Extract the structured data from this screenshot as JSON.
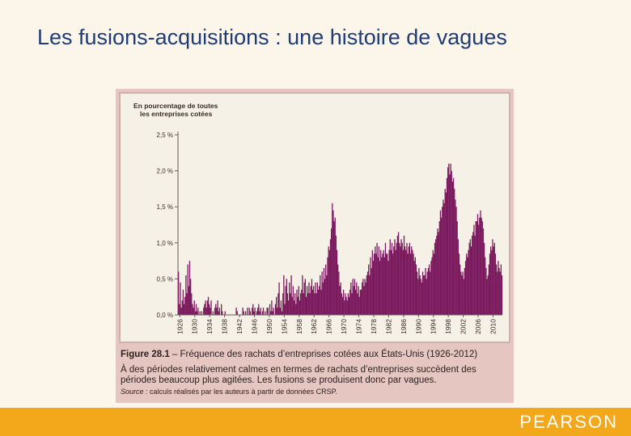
{
  "slide": {
    "title": "Les fusions-acquisitions : une histoire de vagues",
    "footer_logo": "PEARSON"
  },
  "figure": {
    "caption_number": "Figure 28.1",
    "caption_title": " – Fréquence des rachats d’entreprises cotées aux États-Unis (1926-2012)",
    "caption_body": "À des périodes relativement calmes en termes de rachats d’entreprises succèdent des périodes beaucoup plus agitées. Les fusions se produisent donc par vagues.",
    "source_label": "Source :",
    "source_text": " calculs réalisés par les auteurs à partir de données CRSP."
  },
  "colors": {
    "bar": "#7b1a5e",
    "background": "#fcf6ea",
    "figure_frame": "#e5c6c0",
    "title": "#1e3c78",
    "footer": "#f3a81c"
  },
  "chart_data": {
    "type": "bar",
    "ylabel": "En pourcentage de toutes les entreprises cotées",
    "ylim": [
      0,
      2.5
    ],
    "y_ticks": [
      "0,0 %",
      "0,5 %",
      "1,0 %",
      "1,5 %",
      "2,0 %",
      "2,5 %"
    ],
    "x_ticks": [
      "1926",
      "1930",
      "1934",
      "1938",
      "1942",
      "1946",
      "1950",
      "1954",
      "1958",
      "1962",
      "1966",
      "1970",
      "1974",
      "1978",
      "1982",
      "1986",
      "1990",
      "1994",
      "1998",
      "2002",
      "2006",
      "2010"
    ],
    "xlim": [
      1926,
      2013
    ],
    "grid": false,
    "bar_series": [
      {
        "year": 1926,
        "values": [
          0.6,
          0.15,
          0.45,
          0.1
        ]
      },
      {
        "year": 1927,
        "values": [
          0.2,
          0.35,
          0.15,
          0.25
        ]
      },
      {
        "year": 1928,
        "values": [
          0.55,
          0.3,
          0.7,
          0.4
        ]
      },
      {
        "year": 1929,
        "values": [
          0.75,
          0.5,
          0.3,
          0.15
        ]
      },
      {
        "year": 1930,
        "values": [
          0.1,
          0.2,
          0.05,
          0.15
        ]
      },
      {
        "year": 1931,
        "values": [
          0.05,
          0.1,
          0.0,
          0.05
        ]
      },
      {
        "year": 1932,
        "values": [
          0.0,
          0.05,
          0.0,
          0.1
        ]
      },
      {
        "year": 1933,
        "values": [
          0.15,
          0.2,
          0.1,
          0.2
        ]
      },
      {
        "year": 1934,
        "values": [
          0.25,
          0.15,
          0.1,
          0.2
        ]
      },
      {
        "year": 1935,
        "values": [
          0.0,
          0.05,
          0.0,
          0.1
        ]
      },
      {
        "year": 1936,
        "values": [
          0.15,
          0.1,
          0.2,
          0.05
        ]
      },
      {
        "year": 1937,
        "values": [
          0.1,
          0.0,
          0.15,
          0.05
        ]
      },
      {
        "year": 1938,
        "values": [
          0.0,
          0.0,
          0.05,
          0.0
        ]
      },
      {
        "year": 1939,
        "values": [
          0.0,
          0.0,
          0.0,
          0.0
        ]
      },
      {
        "year": 1940,
        "values": [
          0.0,
          0.0,
          0.0,
          0.0
        ]
      },
      {
        "year": 1941,
        "values": [
          0.0,
          0.0,
          0.1,
          0.05
        ]
      },
      {
        "year": 1942,
        "values": [
          0.0,
          0.0,
          0.0,
          0.0
        ]
      },
      {
        "year": 1943,
        "values": [
          0.0,
          0.1,
          0.05,
          0.0
        ]
      },
      {
        "year": 1944,
        "values": [
          0.05,
          0.0,
          0.1,
          0.0
        ]
      },
      {
        "year": 1945,
        "values": [
          0.1,
          0.05,
          0.0,
          0.1
        ]
      },
      {
        "year": 1946,
        "values": [
          0.15,
          0.05,
          0.1,
          0.0
        ]
      },
      {
        "year": 1947,
        "values": [
          0.05,
          0.1,
          0.15,
          0.05
        ]
      },
      {
        "year": 1948,
        "values": [
          0.1,
          0.0,
          0.05,
          0.1
        ]
      },
      {
        "year": 1949,
        "values": [
          0.0,
          0.05,
          0.0,
          0.1
        ]
      },
      {
        "year": 1950,
        "values": [
          0.1,
          0.0,
          0.15,
          0.05
        ]
      },
      {
        "year": 1951,
        "values": [
          0.2,
          0.05,
          0.1,
          0.0
        ]
      },
      {
        "year": 1952,
        "values": [
          0.15,
          0.25,
          0.1,
          0.3
        ]
      },
      {
        "year": 1953,
        "values": [
          0.45,
          0.1,
          0.2,
          0.05
        ]
      },
      {
        "year": 1954,
        "values": [
          0.3,
          0.55,
          0.15,
          0.4
        ]
      },
      {
        "year": 1955,
        "values": [
          0.5,
          0.3,
          0.2,
          0.45
        ]
      },
      {
        "year": 1956,
        "values": [
          0.3,
          0.55,
          0.25,
          0.4
        ]
      },
      {
        "year": 1957,
        "values": [
          0.2,
          0.3,
          0.15,
          0.35
        ]
      },
      {
        "year": 1958,
        "values": [
          0.25,
          0.4,
          0.2,
          0.3
        ]
      },
      {
        "year": 1959,
        "values": [
          0.35,
          0.55,
          0.3,
          0.45
        ]
      },
      {
        "year": 1960,
        "values": [
          0.5,
          0.25,
          0.4,
          0.3
        ]
      },
      {
        "year": 1961,
        "values": [
          0.45,
          0.3,
          0.4,
          0.5
        ]
      },
      {
        "year": 1962,
        "values": [
          0.35,
          0.4,
          0.3,
          0.45
        ]
      },
      {
        "year": 1963,
        "values": [
          0.3,
          0.45,
          0.35,
          0.4
        ]
      },
      {
        "year": 1964,
        "values": [
          0.55,
          0.35,
          0.6,
          0.45
        ]
      },
      {
        "year": 1965,
        "values": [
          0.65,
          0.5,
          0.7,
          0.55
        ]
      },
      {
        "year": 1966,
        "values": [
          0.8,
          0.95,
          0.9,
          1.05
        ]
      },
      {
        "year": 1967,
        "values": [
          1.2,
          1.55,
          1.45,
          1.3
        ]
      },
      {
        "year": 1968,
        "values": [
          1.35,
          1.1,
          0.9,
          0.7
        ]
      },
      {
        "year": 1969,
        "values": [
          0.6,
          0.4,
          0.45,
          0.3
        ]
      },
      {
        "year": 1970,
        "values": [
          0.25,
          0.35,
          0.2,
          0.3
        ]
      },
      {
        "year": 1971,
        "values": [
          0.25,
          0.2,
          0.3,
          0.25
        ]
      },
      {
        "year": 1972,
        "values": [
          0.35,
          0.45,
          0.3,
          0.5
        ]
      },
      {
        "year": 1973,
        "values": [
          0.4,
          0.5,
          0.35,
          0.45
        ]
      },
      {
        "year": 1974,
        "values": [
          0.3,
          0.4,
          0.25,
          0.35
        ]
      },
      {
        "year": 1975,
        "values": [
          0.35,
          0.45,
          0.5,
          0.4
        ]
      },
      {
        "year": 1976,
        "values": [
          0.5,
          0.45,
          0.55,
          0.6
        ]
      },
      {
        "year": 1977,
        "values": [
          0.7,
          0.55,
          0.8,
          0.65
        ]
      },
      {
        "year": 1978,
        "values": [
          0.9,
          0.75,
          0.85,
          0.95
        ]
      },
      {
        "year": 1979,
        "values": [
          0.85,
          1.0,
          0.8,
          0.95
        ]
      },
      {
        "year": 1980,
        "values": [
          0.75,
          0.9,
          0.8,
          0.85
        ]
      },
      {
        "year": 1981,
        "values": [
          0.9,
          0.8,
          1.0,
          0.85
        ]
      },
      {
        "year": 1982,
        "values": [
          0.85,
          0.75,
          0.9,
          1.05
        ]
      },
      {
        "year": 1983,
        "values": [
          0.9,
          1.0,
          0.85,
          0.95
        ]
      },
      {
        "year": 1984,
        "values": [
          1.05,
          0.9,
          1.0,
          1.1
        ]
      },
      {
        "year": 1985,
        "values": [
          1.15,
          1.0,
          0.95,
          1.05
        ]
      },
      {
        "year": 1986,
        "values": [
          1.0,
          0.9,
          1.1,
          0.95
        ]
      },
      {
        "year": 1987,
        "values": [
          0.9,
          1.0,
          0.85,
          0.95
        ]
      },
      {
        "year": 1988,
        "values": [
          1.0,
          0.85,
          0.95,
          0.9
        ]
      },
      {
        "year": 1989,
        "values": [
          0.85,
          0.75,
          0.8,
          0.7
        ]
      },
      {
        "year": 1990,
        "values": [
          0.6,
          0.5,
          0.65,
          0.55
        ]
      },
      {
        "year": 1991,
        "values": [
          0.5,
          0.45,
          0.6,
          0.55
        ]
      },
      {
        "year": 1992,
        "values": [
          0.55,
          0.65,
          0.5,
          0.6
        ]
      },
      {
        "year": 1993,
        "values": [
          0.65,
          0.7,
          0.6,
          0.75
        ]
      },
      {
        "year": 1994,
        "values": [
          0.8,
          0.9,
          0.85,
          1.0
        ]
      },
      {
        "year": 1995,
        "values": [
          1.05,
          1.1,
          1.2,
          1.15
        ]
      },
      {
        "year": 1996,
        "values": [
          1.3,
          1.45,
          1.35,
          1.5
        ]
      },
      {
        "year": 1997,
        "values": [
          1.6,
          1.55,
          1.75,
          1.7
        ]
      },
      {
        "year": 1998,
        "values": [
          1.9,
          2.05,
          2.1,
          1.95
        ]
      },
      {
        "year": 1999,
        "values": [
          2.1,
          2.0,
          1.85,
          1.9
        ]
      },
      {
        "year": 2000,
        "values": [
          1.75,
          1.6,
          1.5,
          1.3
        ]
      },
      {
        "year": 2001,
        "values": [
          1.05,
          0.85,
          0.7,
          0.6
        ]
      },
      {
        "year": 2002,
        "values": [
          0.55,
          0.6,
          0.5,
          0.65
        ]
      },
      {
        "year": 2003,
        "values": [
          0.75,
          0.85,
          0.8,
          0.9
        ]
      },
      {
        "year": 2004,
        "values": [
          1.0,
          1.05,
          0.95,
          1.1
        ]
      },
      {
        "year": 2005,
        "values": [
          1.15,
          1.25,
          1.1,
          1.3
        ]
      },
      {
        "year": 2006,
        "values": [
          1.3,
          1.4,
          1.25,
          1.35
        ]
      },
      {
        "year": 2007,
        "values": [
          1.45,
          1.35,
          1.3,
          1.2
        ]
      },
      {
        "year": 2008,
        "values": [
          1.0,
          0.8,
          0.65,
          0.5
        ]
      },
      {
        "year": 2009,
        "values": [
          0.55,
          0.7,
          0.85,
          0.95
        ]
      },
      {
        "year": 2010,
        "values": [
          0.9,
          1.05,
          0.95,
          1.0
        ]
      },
      {
        "year": 2011,
        "values": [
          0.85,
          0.7,
          0.6,
          0.75
        ]
      },
      {
        "year": 2012,
        "values": [
          0.65,
          0.6,
          0.7,
          0.55
        ]
      }
    ]
  }
}
